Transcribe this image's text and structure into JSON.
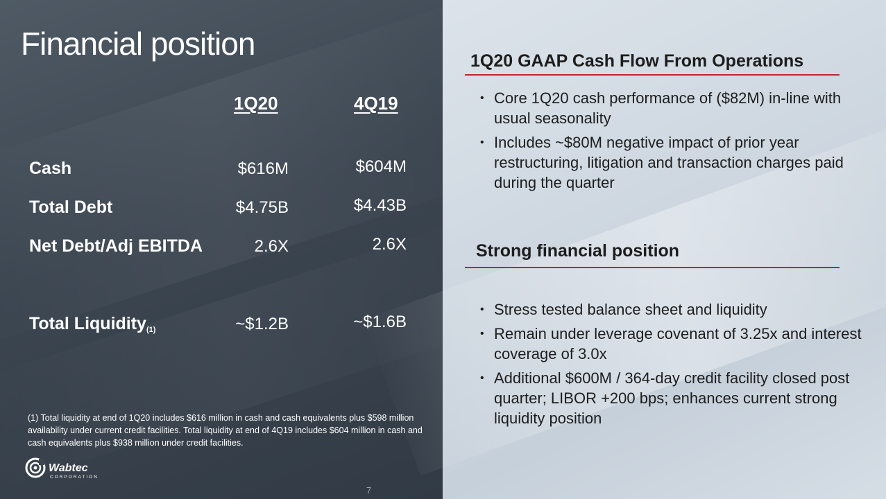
{
  "title": "Financial position",
  "table": {
    "headers": [
      "1Q20",
      "4Q19"
    ],
    "rows": [
      {
        "label": "Cash",
        "values": [
          "$616M",
          "$604M"
        ]
      },
      {
        "label": "Total Debt",
        "values": [
          "$4.75B",
          "$4.43B"
        ]
      },
      {
        "label": "Net Debt/Adj EBITDA",
        "values": [
          "2.6X",
          "2.6X"
        ]
      },
      {
        "label": "Total Liquidity",
        "footnote_ref": "(1)",
        "values": [
          "~$1.2B",
          "~$1.6B"
        ]
      }
    ]
  },
  "footnote": "(1) Total liquidity at end of 1Q20 includes $616 million in cash and cash equivalents plus $598 million  availability under current credit facilities.  Total liquidity at end of 4Q19 includes $604 million in cash and cash equivalents plus $938 million under credit facilities.",
  "logo": {
    "name": "Wabtec",
    "subtitle": "CORPORATION"
  },
  "page_number": "7",
  "right": {
    "section1": {
      "title": "1Q20 GAAP Cash Flow From Operations",
      "bullets": [
        "Core 1Q20 cash performance of ($82M) in-line with usual seasonality",
        "Includes ~$80M negative impact of prior year restructuring, litigation and transaction charges paid during the quarter"
      ]
    },
    "section2": {
      "title": "Strong financial position",
      "bullets": [
        "Stress tested balance sheet and liquidity",
        "Remain under leverage covenant of 3.25x and interest coverage of 3.0x",
        "Additional $600M / 364-day credit facility closed post quarter; LIBOR +200 bps; enhances current strong liquidity position"
      ]
    }
  },
  "colors": {
    "accent_rule": "#c0242c",
    "left_panel": "#3b4550",
    "right_panel": "#cfd8e1"
  }
}
